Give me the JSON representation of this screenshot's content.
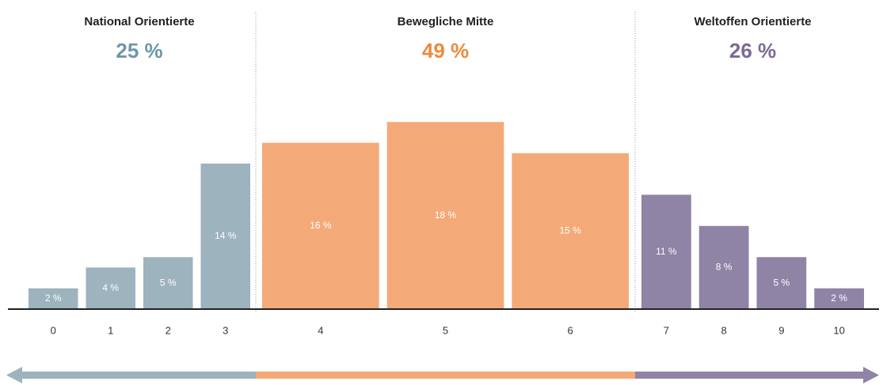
{
  "chart_data": {
    "type": "bar",
    "ylim": [
      0,
      20
    ],
    "series": [
      {
        "name": "National Orientierte",
        "value": 25,
        "value_label": "25 %",
        "color": "#6e97a8",
        "bar_color": "#9db3be",
        "categories": [
          "0",
          "1",
          "2",
          "3"
        ],
        "values": [
          2,
          4,
          5,
          14
        ],
        "value_labels": [
          "2 %",
          "4 %",
          "5 %",
          "14 %"
        ]
      },
      {
        "name": "Bewegliche Mitte",
        "value": 49,
        "value_label": "49 %",
        "color": "#f08a3c",
        "bar_color": "#f4aa78",
        "categories": [
          "4",
          "5",
          "6"
        ],
        "values": [
          16,
          18,
          15
        ],
        "value_labels": [
          "16 %",
          "18 %",
          "15 %"
        ]
      },
      {
        "name": "Weltoffen Orientierte",
        "value": 26,
        "value_label": "26 %",
        "color": "#7a6a96",
        "bar_color": "#8f83a6",
        "categories": [
          "7",
          "8",
          "9",
          "10"
        ],
        "values": [
          11,
          8,
          5,
          2
        ],
        "value_labels": [
          "11 %",
          "8 %",
          "5 %",
          "2 %"
        ]
      }
    ]
  }
}
